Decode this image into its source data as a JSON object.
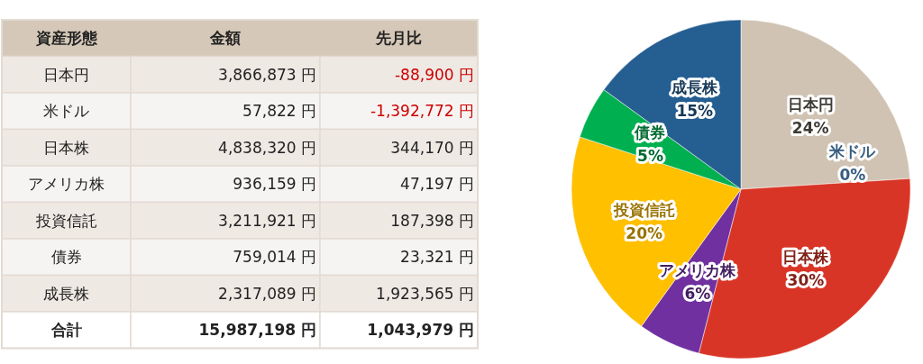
{
  "chart_data": [
    {
      "type": "other",
      "categories": [
        "資産形態",
        "金額",
        "先月比"
      ],
      "y_categories": [
        "日本円",
        "米ドル",
        "日本株",
        "アメリカ株",
        "投資信託",
        "債券",
        "成長株",
        "合計"
      ],
      "cell_labels": [
        [
          "3,866,873 円",
          "-88,900 円"
        ],
        [
          "57,822 円",
          "-1,392,772 円"
        ],
        [
          "4,838,320 円",
          "344,170 円"
        ],
        [
          "936,159 円",
          "47,197 円"
        ],
        [
          "3,211,921 円",
          "187,398 円"
        ],
        [
          "759,014 円",
          "23,321 円"
        ],
        [
          "2,317,089 円",
          "1,923,565 円"
        ],
        [
          "15,987,198 円",
          "1,043,979 円"
        ]
      ]
    },
    {
      "type": "pie",
      "categories": [
        "日本円",
        "米ドル",
        "日本株",
        "アメリカ株",
        "投資信託",
        "債券",
        "成長株"
      ],
      "values": [
        24,
        0,
        30,
        6,
        20,
        5,
        15
      ],
      "colors": [
        "#d0c3b3",
        "#5b9bd5",
        "#d93526",
        "#7030a0",
        "#ffc000",
        "#00b050",
        "#255e91"
      ],
      "value_labels": [
        "24%",
        "0%",
        "30%",
        "6%",
        "20%",
        "5%",
        "15%"
      ]
    }
  ]
}
